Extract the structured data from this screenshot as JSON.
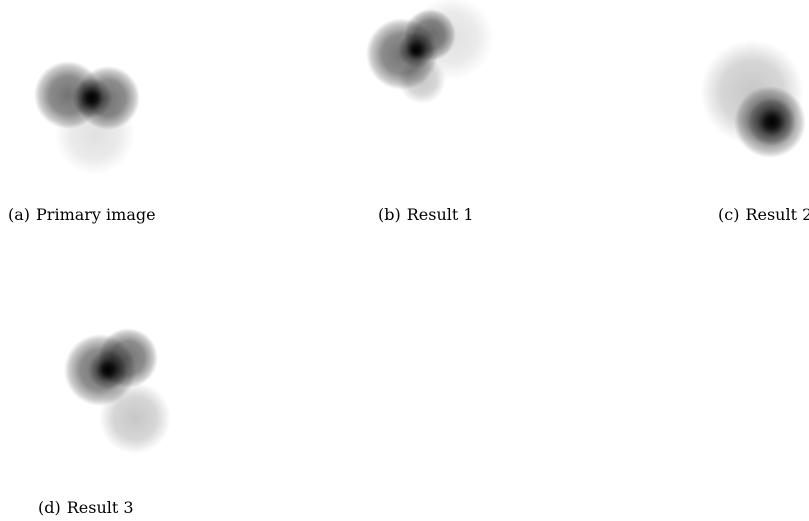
{
  "figure": {
    "panels": [
      {
        "tag": "(a)",
        "label": "Primary image"
      },
      {
        "tag": "(b)",
        "label": "Result 1"
      },
      {
        "tag": "(c)",
        "label": "Result 2"
      },
      {
        "tag": "(d)",
        "label": "Result 3"
      }
    ]
  }
}
